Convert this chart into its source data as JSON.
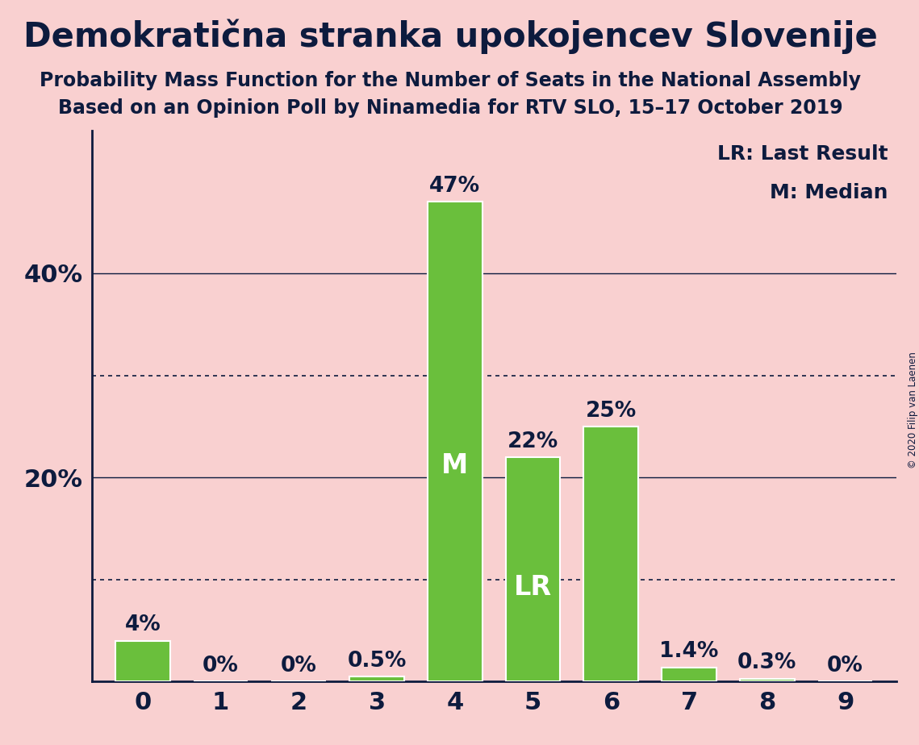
{
  "title": "Demokratična stranka upokojencev Slovenije",
  "subtitle1": "Probability Mass Function for the Number of Seats in the National Assembly",
  "subtitle2": "Based on an Opinion Poll by Ninamedia for RTV SLO, 15–17 October 2019",
  "copyright": "© 2020 Filip van Laenen",
  "categories": [
    0,
    1,
    2,
    3,
    4,
    5,
    6,
    7,
    8,
    9
  ],
  "values": [
    4.0,
    0.0,
    0.0,
    0.5,
    47.0,
    22.0,
    25.0,
    1.4,
    0.3,
    0.0
  ],
  "labels": [
    "4%",
    "0%",
    "0%",
    "0.5%",
    "47%",
    "22%",
    "25%",
    "1.4%",
    "0.3%",
    "0%"
  ],
  "bar_color": "#6abf3c",
  "background_color": "#f9d0d0",
  "bar_edge_color": "white",
  "text_color": "#0d1b3e",
  "median_bar": 4,
  "lr_bar": 5,
  "median_label": "M",
  "lr_label": "LR",
  "legend_lr": "LR: Last Result",
  "legend_m": "M: Median",
  "ylim": [
    0,
    54
  ],
  "ytick_positions": [
    20,
    40
  ],
  "ytick_labels": [
    "20%",
    "40%"
  ],
  "dotted_lines": [
    10,
    30
  ],
  "solid_lines": [
    20,
    40
  ],
  "title_fontsize": 30,
  "subtitle_fontsize": 17,
  "axis_tick_fontsize": 22,
  "bar_label_fontsize": 19,
  "inside_label_fontsize": 24,
  "legend_fontsize": 18
}
